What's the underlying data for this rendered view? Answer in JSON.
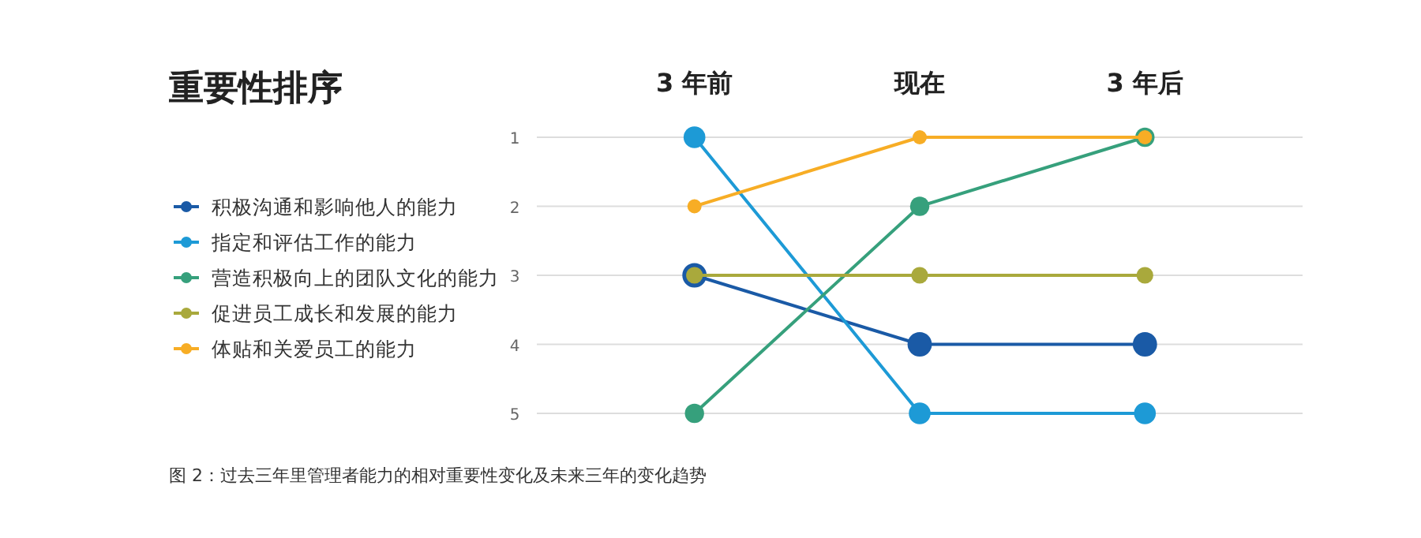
{
  "chart_data": {
    "type": "line",
    "title": "重要性排序",
    "categories": [
      "3 年前",
      "现在",
      "3 年后"
    ],
    "series": [
      {
        "name": "积极沟通和影响他人的能力",
        "color": "#1a5aa6",
        "values": [
          3,
          4,
          4
        ]
      },
      {
        "name": "指定和评估工作的能力",
        "color": "#1d9ad6",
        "values": [
          1,
          5,
          5
        ]
      },
      {
        "name": "营造积极向上的团队文化的能力",
        "color": "#36a07c",
        "values": [
          5,
          2,
          1
        ]
      },
      {
        "name": "促进员工成长和发展的能力",
        "color": "#a9a93c",
        "values": [
          3,
          3,
          3
        ]
      },
      {
        "name": "体贴和关爱员工的能力",
        "color": "#f7ad25",
        "values": [
          2,
          1,
          1
        ]
      }
    ],
    "ylim": [
      5,
      1
    ],
    "yticks": [
      1,
      2,
      3,
      4,
      5
    ],
    "grid": "y",
    "legend": "left",
    "marker": "circle",
    "line_style": "solid",
    "annotations": [
      "图 2：过去三年里管理者能力的相对重要性变化及未来三年的变化趋势"
    ]
  }
}
